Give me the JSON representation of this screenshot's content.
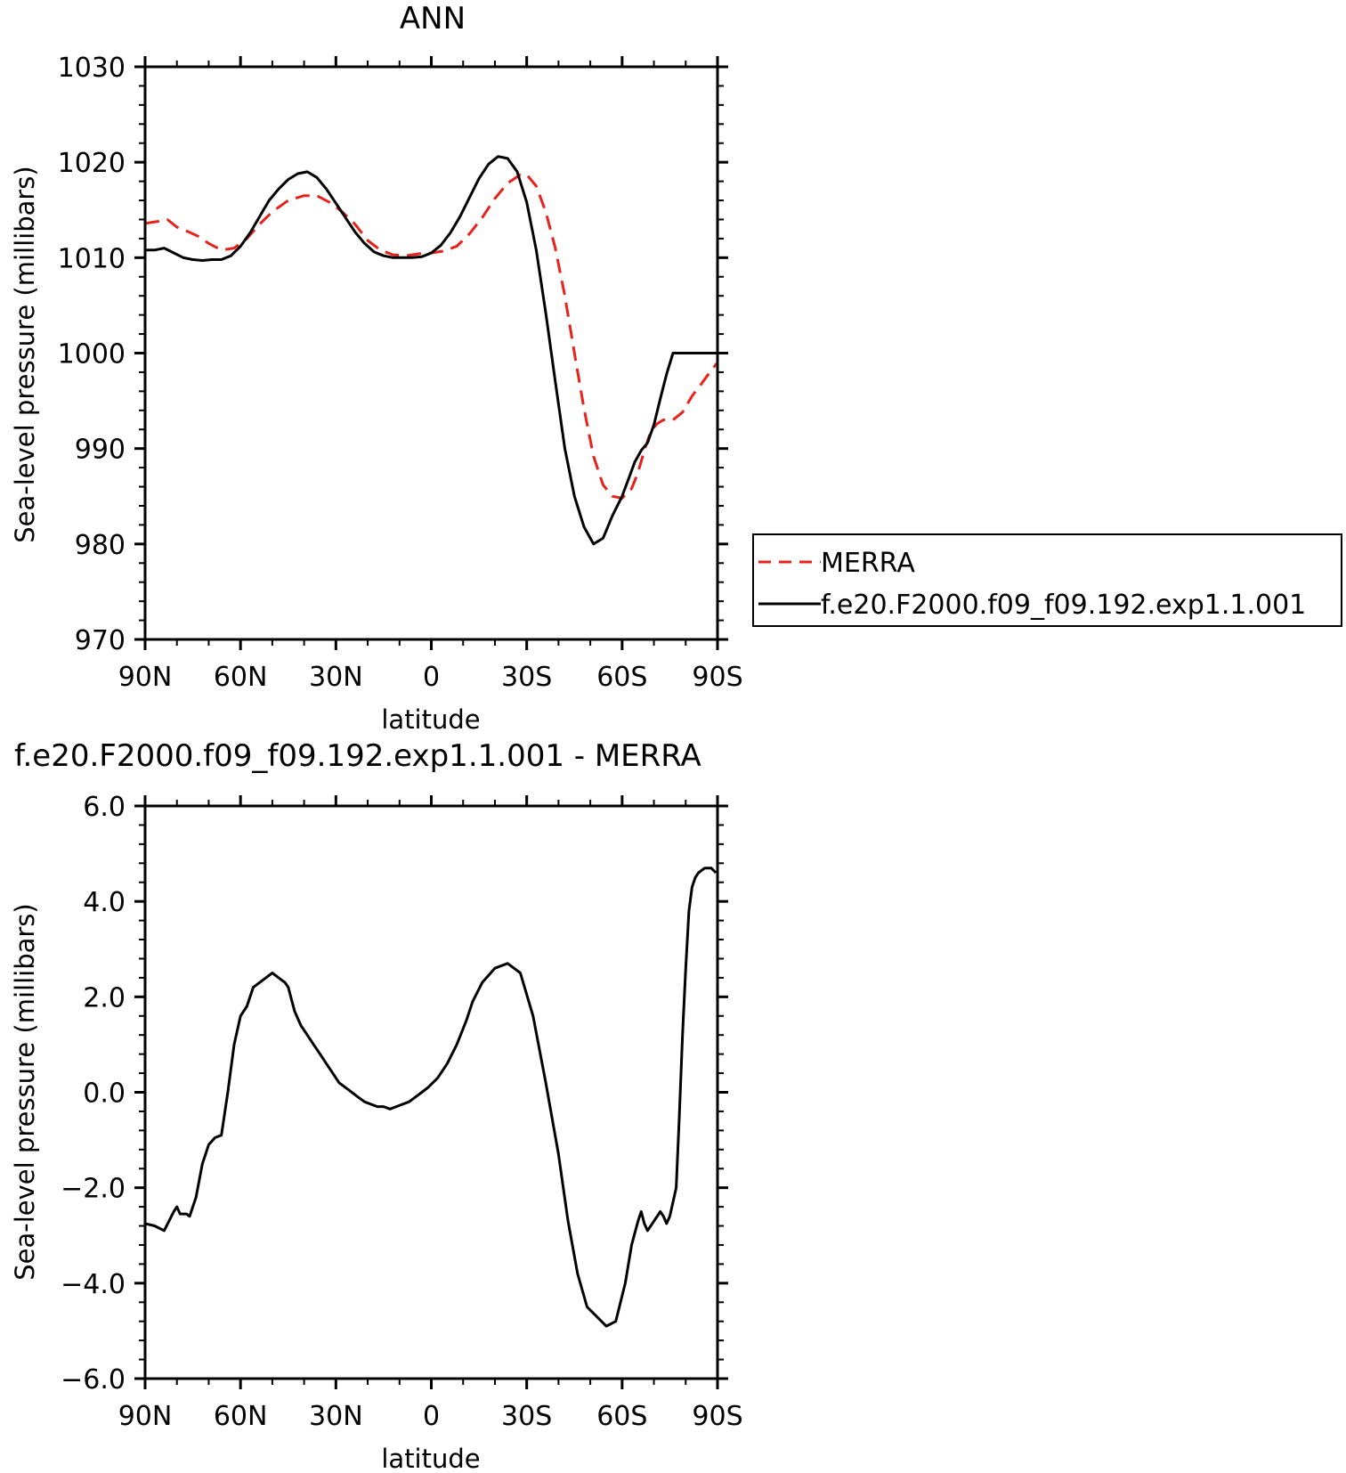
{
  "chart_data": [
    {
      "type": "line",
      "title": "ANN",
      "xlabel": "latitude",
      "ylabel": "Sea-level pressure (millibars)",
      "x_ticks": [
        90,
        60,
        30,
        0,
        -30,
        -60,
        -90
      ],
      "x_tick_labels": [
        "90N",
        "60N",
        "30N",
        "0",
        "30S",
        "60S",
        "90S"
      ],
      "xlim": [
        90,
        -90
      ],
      "y_ticks": [
        970,
        980,
        990,
        1000,
        1010,
        1020,
        1030
      ],
      "y_tick_labels": [
        "970",
        "980",
        "990",
        "1000",
        "1010",
        "1020",
        "1030"
      ],
      "ylim": [
        970,
        1030
      ],
      "grid": false,
      "legend_position": "right",
      "series": [
        {
          "name": "MERRA",
          "color": "#e8211b",
          "dash": "dashed",
          "x": [
            90,
            86,
            83,
            80,
            77,
            73,
            70,
            66,
            62,
            58,
            54,
            50,
            45,
            40,
            36,
            32,
            28,
            24,
            20,
            16,
            12,
            8,
            4,
            0,
            -4,
            -8,
            -12,
            -16,
            -20,
            -24,
            -28,
            -30,
            -33,
            -36,
            -39,
            -42,
            -45,
            -48,
            -51,
            -54,
            -57,
            -60,
            -63,
            -65,
            -67,
            -69,
            -71,
            -73,
            -76,
            -79,
            -82,
            -85,
            -88,
            -90
          ],
          "y": [
            1013.6,
            1013.8,
            1014.0,
            1013.2,
            1012.8,
            1012.2,
            1011.5,
            1010.8,
            1011.0,
            1012.0,
            1013.5,
            1014.8,
            1016.0,
            1016.5,
            1016.5,
            1015.8,
            1014.8,
            1013.5,
            1011.8,
            1010.8,
            1010.3,
            1010.2,
            1010.4,
            1010.5,
            1010.7,
            1011.2,
            1012.5,
            1014.2,
            1016.2,
            1017.8,
            1018.7,
            1018.7,
            1017.5,
            1014.8,
            1011.0,
            1006.0,
            1000.0,
            994.2,
            989.2,
            986.2,
            985.0,
            984.8,
            985.8,
            987.5,
            989.8,
            991.8,
            992.6,
            993.0,
            993.0,
            993.8,
            995.5,
            996.8,
            998.2,
            999.0
          ]
        },
        {
          "name": "f.e20.F2000.f09_f09.192.exp1.1.001",
          "color": "#000000",
          "dash": "solid",
          "x": [
            90,
            87,
            84,
            81,
            78,
            75,
            72,
            69,
            66,
            63,
            60,
            57,
            54,
            51,
            48,
            45,
            42,
            39,
            36,
            33,
            30,
            27,
            24,
            21,
            18,
            15,
            12,
            9,
            6,
            3,
            0,
            -3,
            -6,
            -9,
            -12,
            -15,
            -18,
            -21,
            -24,
            -27,
            -30,
            -33,
            -36,
            -39,
            -42,
            -45,
            -48,
            -51,
            -54,
            -57,
            -60,
            -62,
            -64,
            -66,
            -68,
            -70,
            -72,
            -74,
            -76,
            -78,
            -80,
            -82,
            -84,
            -86,
            -88,
            -90
          ],
          "y": [
            1010.8,
            1010.8,
            1011.0,
            1010.5,
            1010.0,
            1009.8,
            1009.7,
            1009.8,
            1009.8,
            1010.2,
            1011.2,
            1012.6,
            1014.3,
            1016.0,
            1017.2,
            1018.2,
            1018.8,
            1019.0,
            1018.4,
            1017.2,
            1015.7,
            1014.2,
            1012.7,
            1011.5,
            1010.6,
            1010.2,
            1010.0,
            1010.0,
            1010.0,
            1010.1,
            1010.5,
            1011.3,
            1012.6,
            1014.3,
            1016.3,
            1018.3,
            1019.8,
            1020.6,
            1020.4,
            1019.0,
            1015.8,
            1010.8,
            1004.2,
            997.0,
            990.0,
            985.0,
            981.8,
            980.0,
            980.6,
            983.0,
            985.0,
            986.8,
            988.6,
            989.8,
            990.6,
            992.5,
            995.2,
            997.8,
            1000.0,
            1000.0,
            1000.0,
            1000.0,
            1000.0,
            1000.0,
            1000.0,
            1000.0
          ]
        }
      ]
    },
    {
      "type": "line",
      "title": "f.e20.F2000.f09_f09.192.exp1.1.001 - MERRA",
      "xlabel": "latitude",
      "ylabel": "Sea-level pressure (millibars)",
      "x_ticks": [
        90,
        60,
        30,
        0,
        -30,
        -60,
        -90
      ],
      "x_tick_labels": [
        "90N",
        "60N",
        "30N",
        "0",
        "30S",
        "60S",
        "90S"
      ],
      "xlim": [
        90,
        -90
      ],
      "y_ticks": [
        -6,
        -4,
        -2,
        0,
        2,
        4,
        6
      ],
      "y_tick_labels": [
        "−6.0",
        "−4.0",
        "−2.0",
        "0.0",
        "2.0",
        "4.0",
        "6.0"
      ],
      "ylim": [
        -6,
        6
      ],
      "grid": false,
      "series": [
        {
          "color": "#000000",
          "dash": "solid",
          "x": [
            90,
            87,
            84,
            81,
            80,
            79,
            77,
            76,
            74,
            72,
            71,
            70,
            68,
            66,
            64,
            62,
            60,
            58,
            56,
            54,
            52,
            50,
            48,
            46,
            45,
            43,
            41,
            39,
            37,
            35,
            33,
            31,
            29,
            27,
            25,
            23,
            21,
            19,
            17,
            15,
            13,
            11,
            9,
            7,
            5,
            3,
            1,
            -2,
            -5,
            -8,
            -11,
            -13,
            -16,
            -20,
            -24,
            -28,
            -32,
            -36,
            -40,
            -43,
            -46,
            -49,
            -52,
            -55,
            -58,
            -61,
            -63,
            -65,
            -66,
            -67,
            -68,
            -70,
            -72,
            -73,
            -74,
            -75,
            -77,
            -78,
            -79,
            -80,
            -81,
            -82,
            -83,
            -84,
            -86,
            -88,
            -89.5
          ],
          "y": [
            -2.75,
            -2.8,
            -2.9,
            -2.5,
            -2.4,
            -2.55,
            -2.55,
            -2.6,
            -2.2,
            -1.5,
            -1.3,
            -1.1,
            -0.95,
            -0.9,
            0.0,
            1.0,
            1.6,
            1.8,
            2.2,
            2.3,
            2.4,
            2.5,
            2.4,
            2.3,
            2.2,
            1.7,
            1.4,
            1.2,
            1.0,
            0.8,
            0.6,
            0.4,
            0.2,
            0.1,
            0.0,
            -0.1,
            -0.2,
            -0.25,
            -0.3,
            -0.3,
            -0.35,
            -0.3,
            -0.25,
            -0.2,
            -0.1,
            0.0,
            0.1,
            0.3,
            0.6,
            1.0,
            1.5,
            1.9,
            2.3,
            2.6,
            2.7,
            2.5,
            1.6,
            0.2,
            -1.3,
            -2.7,
            -3.8,
            -4.5,
            -4.7,
            -4.9,
            -4.8,
            -4.0,
            -3.2,
            -2.7,
            -2.5,
            -2.75,
            -2.9,
            -2.7,
            -2.5,
            -2.6,
            -2.75,
            -2.6,
            -2.0,
            -0.5,
            1.2,
            2.6,
            3.8,
            4.3,
            4.5,
            4.6,
            4.7,
            4.7,
            4.6
          ]
        }
      ]
    }
  ]
}
